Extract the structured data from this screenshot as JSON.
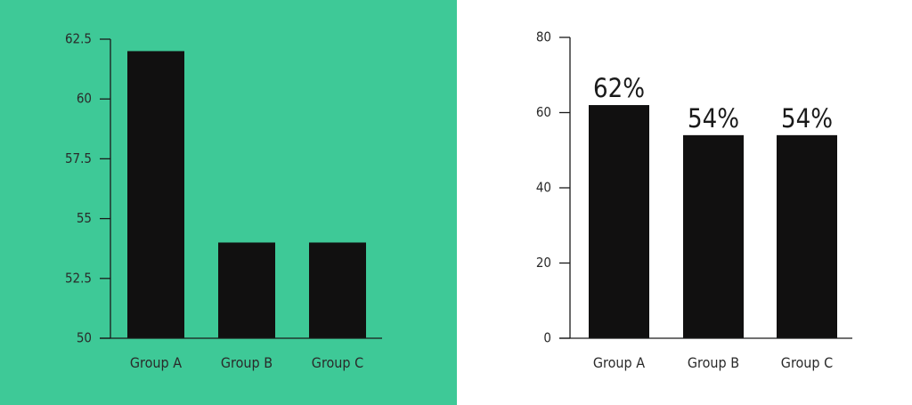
{
  "colors": {
    "left_background": "#3ec997",
    "right_background": "#ffffff",
    "bar": "#111010",
    "axis": "#1a1a1a"
  },
  "chart_data": [
    {
      "type": "bar",
      "categories": [
        "Group A",
        "Group B",
        "Group C"
      ],
      "values": [
        62,
        54,
        54
      ],
      "ylim": [
        50,
        62.5
      ],
      "yticks": [
        "50",
        "52.5",
        "55",
        "57.5",
        "60",
        "62.5"
      ],
      "data_labels": [],
      "grid": false,
      "title": "",
      "xlabel": "",
      "ylabel": ""
    },
    {
      "type": "bar",
      "categories": [
        "Group A",
        "Group B",
        "Group C"
      ],
      "values": [
        62,
        54,
        54
      ],
      "ylim": [
        0,
        80
      ],
      "yticks": [
        "0",
        "20",
        "40",
        "60",
        "80"
      ],
      "data_labels": [
        "62%",
        "54%",
        "54%"
      ],
      "grid": false,
      "title": "",
      "xlabel": "",
      "ylabel": ""
    }
  ]
}
